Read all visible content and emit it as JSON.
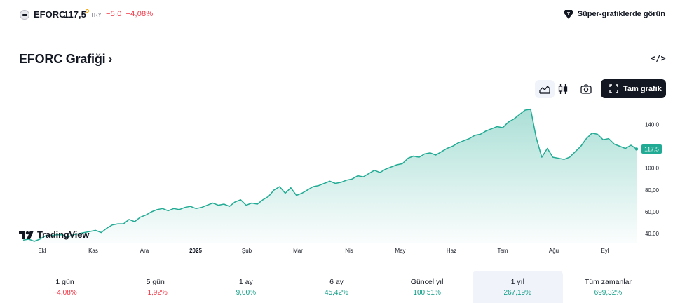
{
  "header": {
    "symbol": "EFORC",
    "price": "117,5",
    "currency": "TRY",
    "change_abs": "−5,0",
    "change_pct": "−4,08%",
    "super_chart_label": "Süper-grafiklerde görün"
  },
  "chart_title": "EFORC Grafiği",
  "chart_title_chevron": "›",
  "embed_label": "</>",
  "toolbar": {
    "fullscreen_label": "Tam grafik"
  },
  "brand": "TradingView",
  "colors": {
    "line": "#22ab94",
    "negative": "#f23645",
    "positive": "#089981",
    "dark": "#131722"
  },
  "chart_data": {
    "type": "area",
    "y_axis_ticks": [
      "140,0",
      "120,0",
      "100,0",
      "80,00",
      "60,00",
      "40,00"
    ],
    "y_ticks_values": [
      140,
      120,
      100,
      80,
      60,
      40
    ],
    "ylim": [
      33,
      155
    ],
    "x_ticks": [
      "Ekl",
      "Kas",
      "Ara",
      "2025",
      "Şub",
      "Mar",
      "Nis",
      "May",
      "Haz",
      "Tem",
      "Ağu",
      "Eyl"
    ],
    "x_ticks_bold": [
      "2025"
    ],
    "current_value_label": "117,5",
    "series": [
      {
        "values": [
          34,
          35,
          33,
          35,
          38,
          38,
          39,
          39,
          37,
          39,
          40,
          41,
          42,
          43,
          41,
          45,
          48,
          49,
          49,
          53,
          51,
          55,
          57,
          60,
          62,
          63,
          61,
          63,
          62,
          64,
          65,
          63,
          64,
          66,
          68,
          66,
          67,
          65,
          69,
          71,
          66,
          68,
          67,
          71,
          74,
          80,
          83,
          77,
          82,
          75,
          77,
          80,
          83,
          84,
          86,
          88,
          86,
          87,
          89,
          90,
          93,
          92,
          95,
          98,
          96,
          99,
          101,
          103,
          104,
          109,
          111,
          110,
          113,
          114,
          112,
          115,
          118,
          120,
          123,
          125,
          127,
          130,
          131,
          134,
          136,
          138,
          137,
          142,
          145,
          149,
          153,
          154,
          128,
          110,
          118,
          110,
          109,
          108,
          110,
          115,
          120,
          127,
          132,
          131,
          126,
          127,
          122,
          120,
          118,
          121,
          117.5
        ]
      }
    ]
  },
  "periods": [
    {
      "label": "1 gün",
      "value": "−4,08%",
      "dir": "neg"
    },
    {
      "label": "5 gün",
      "value": "−1,92%",
      "dir": "neg"
    },
    {
      "label": "1 ay",
      "value": "9,00%",
      "dir": "pos"
    },
    {
      "label": "6 ay",
      "value": "45,42%",
      "dir": "pos"
    },
    {
      "label": "Güncel yıl",
      "value": "100,51%",
      "dir": "pos"
    },
    {
      "label": "1 yıl",
      "value": "267,19%",
      "dir": "pos",
      "active": true
    },
    {
      "label": "Tüm zamanlar",
      "value": "699,32%",
      "dir": "pos"
    }
  ]
}
